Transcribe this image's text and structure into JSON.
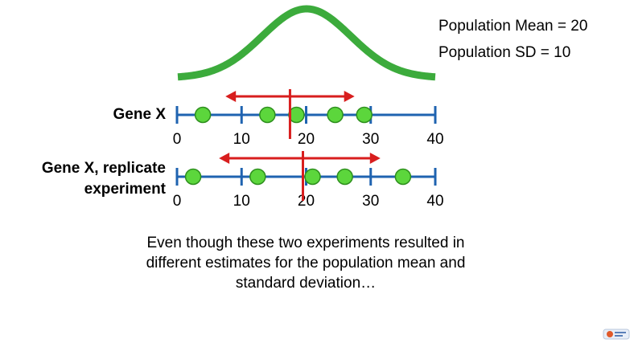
{
  "population": {
    "mean_text": "Population Mean = 20",
    "sd_text": "Population SD = 10"
  },
  "experiments": [
    {
      "label": "Gene X",
      "points": [
        4,
        14,
        18.5,
        24.5,
        29
      ],
      "estimated_mean": 17.5,
      "sd_arrow": [
        7.5,
        27.5
      ],
      "tick_labels": [
        "0",
        "10",
        "20",
        "30",
        "40"
      ]
    },
    {
      "label": "Gene X, replicate experiment",
      "points": [
        2.5,
        12.5,
        21,
        26,
        35
      ],
      "estimated_mean": 19.5,
      "sd_arrow": [
        6.5,
        31.5
      ],
      "tick_labels": [
        "0",
        "10",
        "20",
        "30",
        "40"
      ]
    }
  ],
  "axis": {
    "min": 0,
    "max": 40,
    "ticks": [
      0,
      10,
      20,
      30,
      40
    ]
  },
  "caption": "Even though these two experiments resulted in different estimates for the population mean and standard deviation…",
  "colors": {
    "curve": "#3cab3c",
    "axis": "#1f63b0",
    "point_fill": "#5cd63c",
    "point_stroke": "#2e8f1e",
    "arrow": "#d81e1e"
  },
  "icons": {
    "logo": "statquest-logo-icon"
  }
}
